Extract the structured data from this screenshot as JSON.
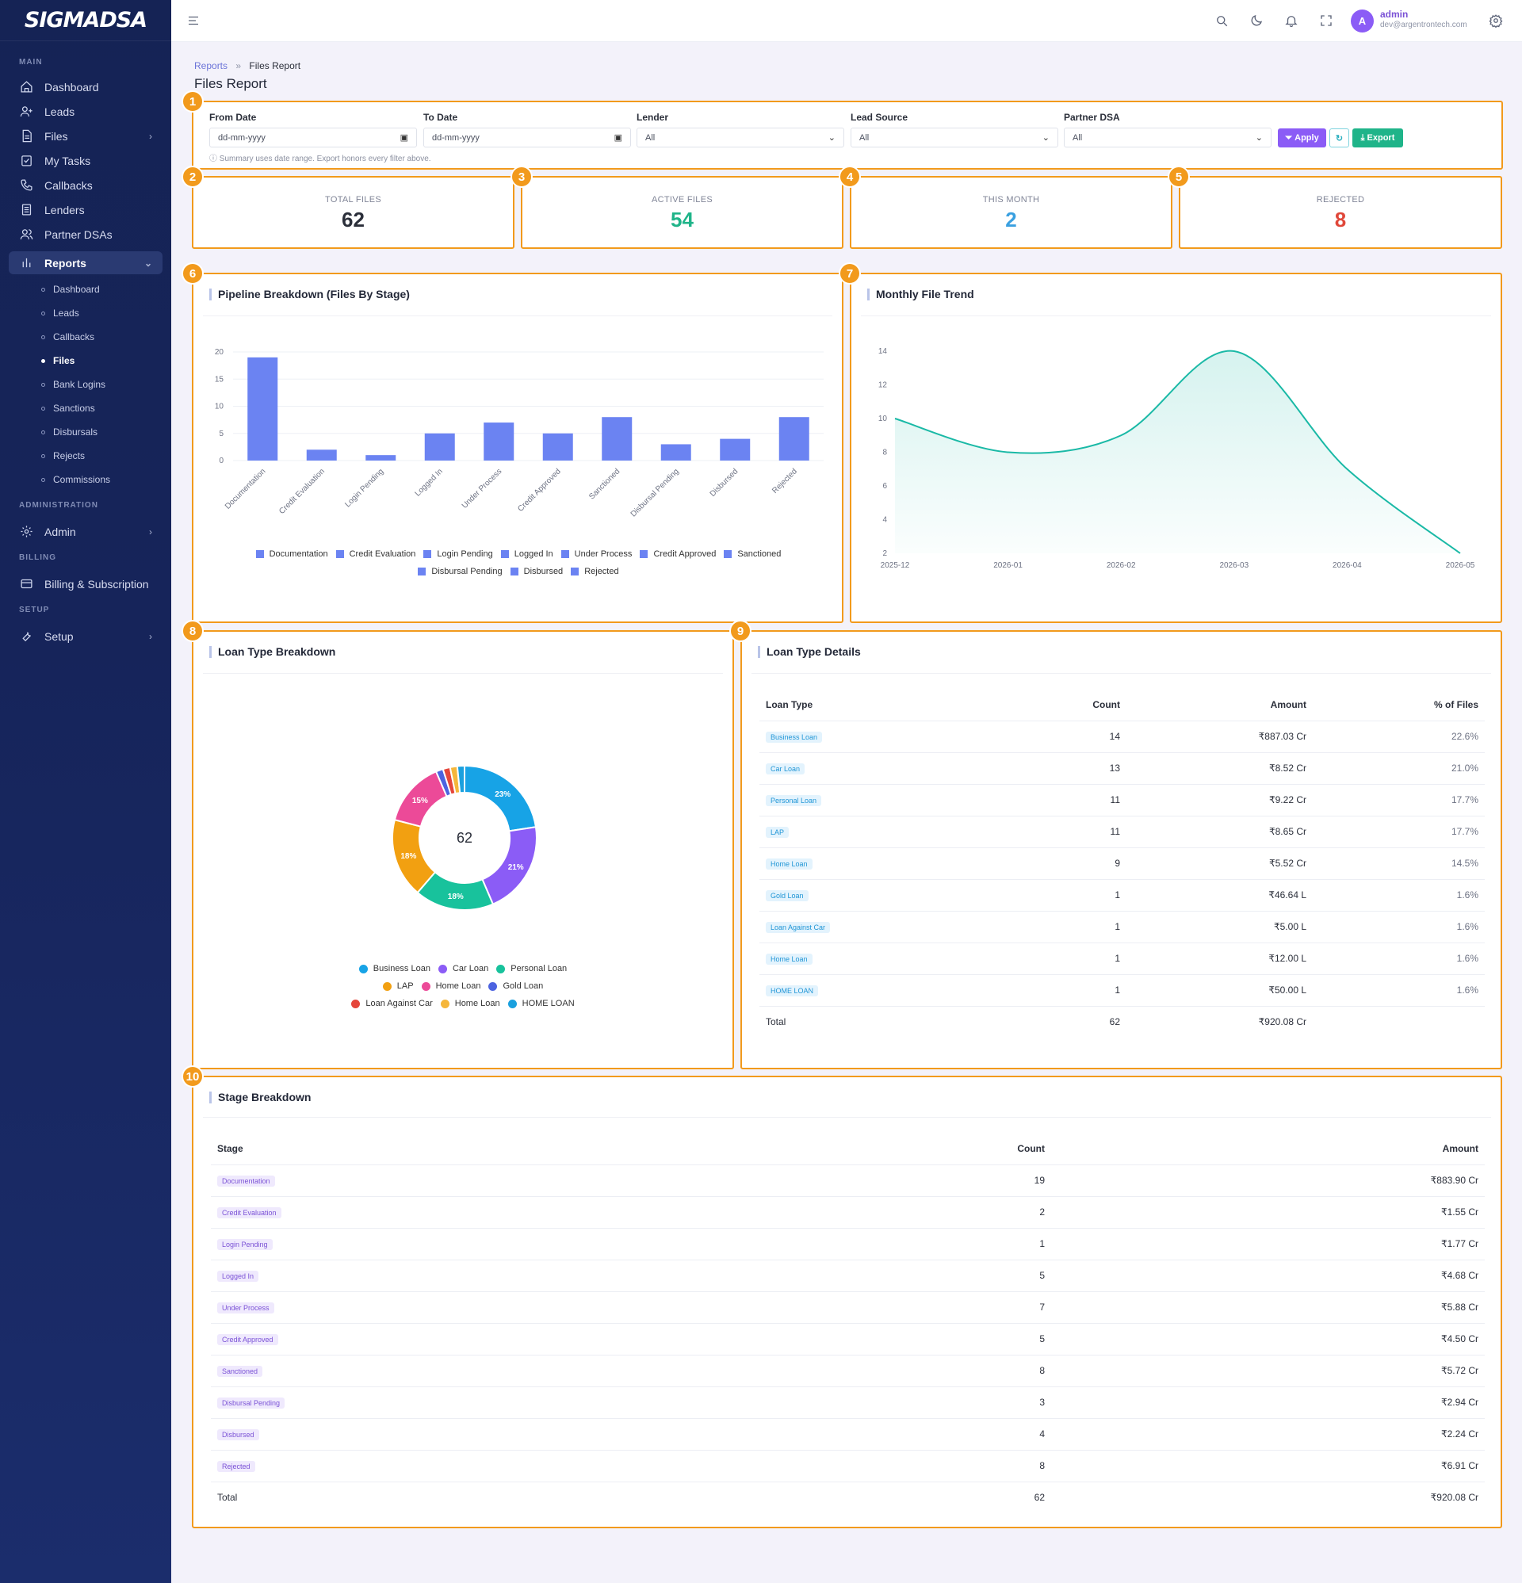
{
  "brand": "SIGMADSA",
  "sidebar": {
    "sections": {
      "main": "MAIN",
      "admin": "ADMINISTRATION",
      "billing": "BILLING",
      "setup": "SETUP"
    },
    "items": {
      "dashboard": "Dashboard",
      "leads": "Leads",
      "files": "Files",
      "tasks": "My Tasks",
      "callbacks": "Callbacks",
      "lenders": "Lenders",
      "partners": "Partner DSAs",
      "reports": "Reports",
      "admin": "Admin",
      "billing": "Billing & Subscription",
      "setup": "Setup"
    },
    "report_sub": [
      "Dashboard",
      "Leads",
      "Callbacks",
      "Files",
      "Bank Logins",
      "Sanctions",
      "Disbursals",
      "Rejects",
      "Commissions"
    ]
  },
  "user": {
    "initial": "A",
    "name": "admin",
    "email": "dev@argentrontech.com"
  },
  "breadcrumb": {
    "parent": "Reports",
    "sep": "»",
    "current": "Files Report"
  },
  "page_title": "Files Report",
  "badges": [
    "1",
    "2",
    "3",
    "4",
    "5",
    "6",
    "7",
    "8",
    "9",
    "10"
  ],
  "filters": {
    "from_label": "From Date",
    "from_placeholder": "dd-mm-yyyy",
    "to_label": "To Date",
    "to_placeholder": "dd-mm-yyyy",
    "lender_label": "Lender",
    "lender_value": "All",
    "source_label": "Lead Source",
    "source_value": "All",
    "partner_label": "Partner DSA",
    "partner_value": "All",
    "apply": "Apply",
    "export": "Export",
    "hint": "Summary uses date range. Export honors every filter above."
  },
  "stats": [
    {
      "label": "TOTAL FILES",
      "value": "62",
      "color": "#2b2f3a"
    },
    {
      "label": "ACTIVE FILES",
      "value": "54",
      "color": "#1fb489"
    },
    {
      "label": "THIS MONTH",
      "value": "2",
      "color": "#3aa0e0"
    },
    {
      "label": "REJECTED",
      "value": "8",
      "color": "#e0473a"
    }
  ],
  "pipeline_title": "Pipeline Breakdown (Files By Stage)",
  "trend_title": "Monthly File Trend",
  "loan_breakdown_title": "Loan Type Breakdown",
  "loan_details_title": "Loan Type Details",
  "stage_title": "Stage Breakdown",
  "chart_data": [
    {
      "type": "bar",
      "title": "Pipeline Breakdown (Files By Stage)",
      "categories": [
        "Documentation",
        "Credit Evaluation",
        "Login Pending",
        "Logged In",
        "Under Process",
        "Credit Approved",
        "Sanctioned",
        "Disbursal Pending",
        "Disbursed",
        "Rejected"
      ],
      "values": [
        19,
        2,
        1,
        5,
        7,
        5,
        8,
        3,
        4,
        8
      ],
      "ylim": [
        0,
        20
      ],
      "yticks": [
        0,
        5,
        10,
        15,
        20
      ],
      "color": "#6b83f2",
      "legend_position": "bottom"
    },
    {
      "type": "area",
      "title": "Monthly File Trend",
      "x": [
        "2025-12",
        "2026-01",
        "2026-02",
        "2026-03",
        "2026-04",
        "2026-05"
      ],
      "values": [
        10,
        8,
        9,
        14,
        7,
        2
      ],
      "ylim": [
        2,
        14
      ],
      "yticks": [
        2,
        4,
        6,
        8,
        10,
        12,
        14
      ],
      "color": "#1ab9a6"
    },
    {
      "type": "pie",
      "title": "Loan Type Breakdown",
      "center_label": "62",
      "labels": [
        "Business Loan",
        "Car Loan",
        "Personal Loan",
        "LAP",
        "Home Loan",
        "Gold Loan",
        "Loan Against Car",
        "Home Loan",
        "HOME LOAN"
      ],
      "values": [
        14,
        13,
        11,
        11,
        9,
        1,
        1,
        1,
        1
      ],
      "slice_labels": [
        "23%",
        "21%",
        "18%",
        "18%",
        "15%",
        "",
        "",
        "",
        ""
      ],
      "colors": [
        "#17a3e6",
        "#8b5cf6",
        "#18c29c",
        "#f2a011",
        "#ec4a98",
        "#4c63e0",
        "#e5463b",
        "#f5b63a",
        "#1aa0de"
      ]
    }
  ],
  "loan_table": {
    "headers": [
      "Loan Type",
      "Count",
      "Amount",
      "% of Files"
    ],
    "rows": [
      [
        "Business Loan",
        "14",
        "₹887.03 Cr",
        "22.6%"
      ],
      [
        "Car Loan",
        "13",
        "₹8.52 Cr",
        "21.0%"
      ],
      [
        "Personal Loan",
        "11",
        "₹9.22 Cr",
        "17.7%"
      ],
      [
        "LAP",
        "11",
        "₹8.65 Cr",
        "17.7%"
      ],
      [
        "Home Loan",
        "9",
        "₹5.52 Cr",
        "14.5%"
      ],
      [
        "Gold Loan",
        "1",
        "₹46.64 L",
        "1.6%"
      ],
      [
        "Loan Against Car",
        "1",
        "₹5.00 L",
        "1.6%"
      ],
      [
        "Home Loan",
        "1",
        "₹12.00 L",
        "1.6%"
      ],
      [
        "HOME LOAN",
        "1",
        "₹50.00 L",
        "1.6%"
      ]
    ],
    "total": [
      "Total",
      "62",
      "₹920.08 Cr",
      ""
    ]
  },
  "stage_table": {
    "headers": [
      "Stage",
      "Count",
      "Amount"
    ],
    "rows": [
      [
        "Documentation",
        "19",
        "₹883.90 Cr"
      ],
      [
        "Credit Evaluation",
        "2",
        "₹1.55 Cr"
      ],
      [
        "Login Pending",
        "1",
        "₹1.77 Cr"
      ],
      [
        "Logged In",
        "5",
        "₹4.68 Cr"
      ],
      [
        "Under Process",
        "7",
        "₹5.88 Cr"
      ],
      [
        "Credit Approved",
        "5",
        "₹4.50 Cr"
      ],
      [
        "Sanctioned",
        "8",
        "₹5.72 Cr"
      ],
      [
        "Disbursal Pending",
        "3",
        "₹2.94 Cr"
      ],
      [
        "Disbursed",
        "4",
        "₹2.24 Cr"
      ],
      [
        "Rejected",
        "8",
        "₹6.91 Cr"
      ]
    ],
    "total": [
      "Total",
      "62",
      "₹920.08 Cr"
    ]
  }
}
